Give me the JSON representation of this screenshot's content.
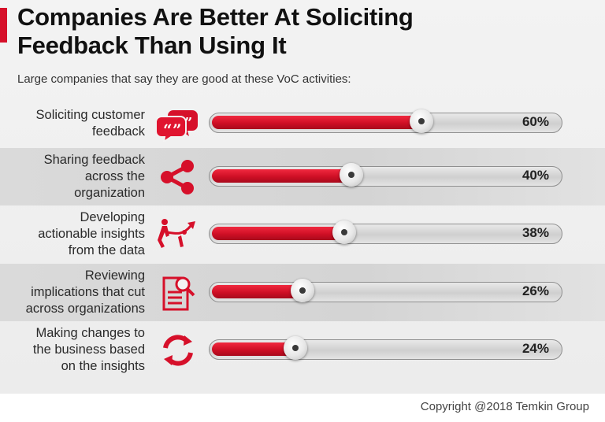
{
  "header": {
    "title_line1": "Companies Are Better At Soliciting",
    "title_line2": "Feedback Than Using It",
    "subtitle": "Large companies that say they are good at these VoC activities:"
  },
  "chart_data": {
    "type": "bar",
    "title": "Companies Are Better At Soliciting Feedback Than Using It",
    "subtitle": "Large companies that say they are good at these VoC activities:",
    "categories": [
      "Soliciting customer feedback",
      "Sharing feedback across the organization",
      "Developing actionable insights from the data",
      "Reviewing implications that cut across organizations",
      "Making changes to the business based on the insights"
    ],
    "values": [
      60,
      40,
      38,
      26,
      24
    ],
    "value_labels": [
      "60%",
      "40%",
      "38%",
      "26%",
      "24%"
    ],
    "xlim": [
      0,
      100
    ],
    "unit": "%",
    "orientation": "horizontal",
    "grid": false,
    "bar_color": "#d6102a"
  },
  "rows": [
    {
      "label_lines": [
        "Soliciting customer",
        "feedback"
      ],
      "icon": "speech-bubbles-icon"
    },
    {
      "label_lines": [
        "Sharing feedback",
        "across the",
        "organization"
      ],
      "icon": "share-icon"
    },
    {
      "label_lines": [
        "Developing",
        "actionable insights",
        "from the data"
      ],
      "icon": "tug-of-war-icon"
    },
    {
      "label_lines": [
        "Reviewing",
        "implications that cut",
        "across organizations"
      ],
      "icon": "document-search-icon"
    },
    {
      "label_lines": [
        "Making changes to",
        "the business based",
        "on the insights"
      ],
      "icon": "refresh-icon"
    }
  ],
  "footer": {
    "copyright": "Copyright @2018 Temkin Group"
  },
  "colors": {
    "accent": "#d6102a",
    "text": "#111111",
    "shaded_row": "#d6d6d6"
  }
}
